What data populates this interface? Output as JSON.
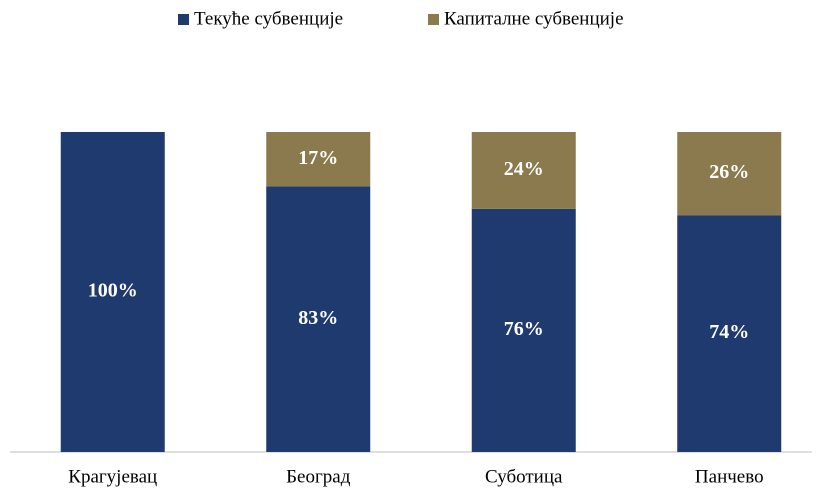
{
  "chart_data": {
    "type": "stacked_bar",
    "categories": [
      "Крагујевац",
      "Београд",
      "Суботица",
      "Панчево"
    ],
    "series": [
      {
        "name": "Текуће субвенције",
        "color": "#1f3a6e",
        "values": [
          100,
          83,
          76,
          74
        ],
        "value_labels": [
          "100%",
          "83%",
          "76%",
          "74%"
        ]
      },
      {
        "name": "Капиталне субвенције",
        "color": "#8b7a4d",
        "values": [
          0,
          17,
          24,
          26
        ],
        "value_labels": [
          null,
          "17%",
          "24%",
          "26%"
        ]
      }
    ],
    "legend": "top"
  }
}
